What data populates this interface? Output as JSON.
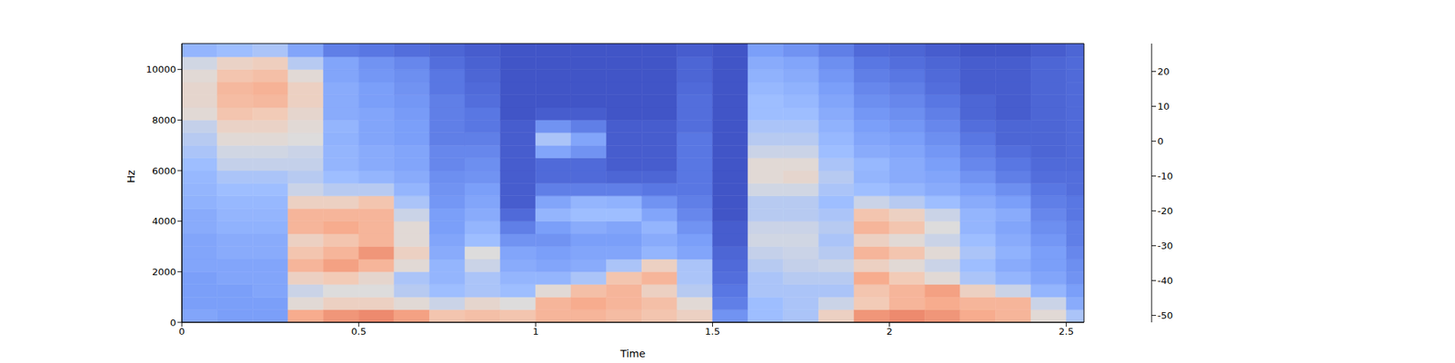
{
  "chart_data": {
    "type": "heatmap",
    "xlabel": "Time",
    "ylabel": "Hz",
    "xlim": [
      0,
      2.55
    ],
    "ylim": [
      0,
      11025
    ],
    "xticks": [
      0,
      0.5,
      1,
      1.5,
      2,
      2.5
    ],
    "yticks": [
      0,
      2000,
      4000,
      6000,
      8000,
      10000
    ],
    "x_edges": [
      0,
      0.1,
      0.2,
      0.3,
      0.4,
      0.5,
      0.6,
      0.7,
      0.8,
      0.9,
      1.0,
      1.1,
      1.2,
      1.3,
      1.4,
      1.5,
      1.6,
      1.7,
      1.8,
      1.9,
      2.0,
      2.1,
      2.2,
      2.3,
      2.4,
      2.5,
      2.55
    ],
    "y_edges": [
      0,
      500,
      1000,
      1500,
      2000,
      2500,
      3000,
      3500,
      4000,
      4500,
      5000,
      5500,
      6000,
      6500,
      7000,
      7500,
      8000,
      8500,
      9000,
      9500,
      10000,
      10500,
      11025
    ],
    "z": [
      [
        -30,
        -32,
        -32,
        -32,
        -30,
        -30,
        -30,
        -28,
        -28,
        -26,
        -25,
        -24,
        -22,
        -20,
        -18,
        -16,
        -10,
        -8,
        -8,
        -10,
        -14,
        -25
      ],
      [
        -32,
        -32,
        -32,
        -30,
        -30,
        -28,
        -28,
        -26,
        -25,
        -24,
        -22,
        -20,
        -16,
        -14,
        -10,
        -6,
        0,
        3,
        4,
        0,
        -6,
        -22
      ],
      [
        -32,
        -32,
        -30,
        -30,
        -30,
        -28,
        -28,
        -26,
        -25,
        -24,
        -22,
        -20,
        -16,
        -14,
        -10,
        -6,
        -2,
        4,
        6,
        2,
        -4,
        -20
      ],
      [
        8,
        -10,
        -15,
        -5,
        5,
        0,
        -5,
        5,
        5,
        -5,
        -15,
        -18,
        -16,
        -15,
        -12,
        -10,
        -8,
        -5,
        -5,
        -10,
        -18,
        -30
      ],
      [
        12,
        -5,
        -12,
        -2,
        10,
        5,
        0,
        8,
        5,
        -5,
        -18,
        -22,
        -25,
        -25,
        -26,
        -25,
        -28,
        -28,
        -28,
        -30,
        -30,
        -40
      ],
      [
        14,
        -5,
        -12,
        -8,
        5,
        12,
        5,
        5,
        5,
        0,
        -18,
        -25,
        -28,
        -28,
        -30,
        -30,
        -30,
        -32,
        -32,
        -34,
        -35,
        -42
      ],
      [
        10,
        -10,
        -18,
        -20,
        -10,
        -5,
        -10,
        -10,
        -15,
        -20,
        -25,
        -28,
        -30,
        -30,
        -32,
        -32,
        -33,
        -34,
        -35,
        -36,
        -38,
        -44
      ],
      [
        0,
        -15,
        -22,
        -25,
        -25,
        -28,
        -30,
        -32,
        -32,
        -34,
        -35,
        -36,
        -38,
        -38,
        -40,
        -40,
        -40,
        -40,
        -42,
        -42,
        -44,
        -46
      ],
      [
        2,
        -8,
        -20,
        -20,
        -15,
        -12,
        -22,
        -25,
        -28,
        -30,
        -32,
        -35,
        -36,
        -38,
        -40,
        -42,
        -42,
        -44,
        -45,
        -46,
        -47,
        -48
      ],
      [
        0,
        -12,
        -22,
        -25,
        -28,
        -30,
        -35,
        -40,
        -45,
        -48,
        -48,
        -48,
        -48,
        -48,
        -48,
        -48,
        -50,
        -50,
        -50,
        -50,
        -50,
        -50
      ],
      [
        5,
        5,
        -10,
        -25,
        -30,
        -32,
        -35,
        -32,
        -25,
        -30,
        -40,
        -45,
        -45,
        -30,
        -20,
        -35,
        -48,
        -50,
        -50,
        -50,
        -50,
        -50
      ],
      [
        5,
        8,
        2,
        -20,
        -28,
        -30,
        -32,
        -28,
        -22,
        -25,
        -40,
        -45,
        -45,
        -35,
        -30,
        -40,
        -48,
        -50,
        -50,
        -50,
        -50,
        -50
      ],
      [
        3,
        5,
        5,
        0,
        -20,
        -30,
        -32,
        -30,
        -22,
        -26,
        -40,
        -46,
        -48,
        -48,
        -48,
        -48,
        -50,
        -50,
        -50,
        -50,
        -50,
        -50
      ],
      [
        0,
        2,
        -5,
        5,
        -5,
        -25,
        -28,
        -25,
        -30,
        -35,
        -42,
        -46,
        -48,
        -48,
        -48,
        -48,
        -50,
        -50,
        -50,
        -50,
        -50,
        -50
      ],
      [
        -5,
        -10,
        -18,
        -20,
        -20,
        -30,
        -32,
        -35,
        -38,
        -40,
        -42,
        -42,
        -42,
        -42,
        -42,
        -44,
        -44,
        -44,
        -45,
        -46,
        -46,
        -48
      ],
      [
        -35,
        -40,
        -42,
        -44,
        -45,
        -46,
        -48,
        -48,
        -50,
        -50,
        -50,
        -50,
        -50,
        -50,
        -50,
        -50,
        -50,
        -50,
        -50,
        -50,
        -50,
        -50
      ],
      [
        -22,
        -22,
        -20,
        -20,
        -18,
        -16,
        -14,
        -15,
        -18,
        -18,
        -14,
        -10,
        -10,
        -15,
        -18,
        -20,
        -22,
        -22,
        -24,
        -26,
        -28,
        -32
      ],
      [
        -20,
        -20,
        -20,
        -18,
        -16,
        -15,
        -14,
        -15,
        -18,
        -18,
        -14,
        -8,
        -10,
        -15,
        -18,
        -20,
        -22,
        -24,
        -26,
        -28,
        -30,
        -35
      ],
      [
        -5,
        -15,
        -20,
        -18,
        -15,
        -18,
        -20,
        -18,
        -20,
        -22,
        -20,
        -18,
        -20,
        -22,
        -24,
        -26,
        -28,
        -30,
        -32,
        -34,
        -36,
        -40
      ],
      [
        12,
        -2,
        0,
        8,
        -5,
        5,
        -5,
        5,
        0,
        -15,
        -22,
        -25,
        -24,
        -28,
        -30,
        -32,
        -34,
        -36,
        -38,
        -40,
        -42,
        -45
      ],
      [
        14,
        5,
        5,
        -2,
        -10,
        0,
        -10,
        0,
        -5,
        -18,
        -25,
        -28,
        -28,
        -30,
        -32,
        -34,
        -36,
        -38,
        -40,
        -42,
        -44,
        -46
      ],
      [
        12,
        8,
        10,
        -10,
        -15,
        -10,
        -15,
        -12,
        -15,
        -22,
        -28,
        -30,
        -32,
        -34,
        -36,
        -38,
        -40,
        -42,
        -44,
        -45,
        -46,
        -48
      ],
      [
        8,
        5,
        -5,
        -20,
        -22,
        -20,
        -22,
        -25,
        -25,
        -28,
        -32,
        -35,
        -38,
        -40,
        -42,
        -44,
        -46,
        -46,
        -48,
        -48,
        -48,
        -50
      ],
      [
        5,
        5,
        -15,
        -25,
        -28,
        -26,
        -28,
        -30,
        -28,
        -32,
        -36,
        -40,
        -42,
        -44,
        -46,
        -46,
        -48,
        -48,
        -48,
        -48,
        -48,
        -50
      ],
      [
        -10,
        -15,
        -25,
        -30,
        -32,
        -32,
        -34,
        -36,
        -38,
        -40,
        -42,
        -44,
        -45,
        -46,
        -46,
        -46,
        -46,
        -46,
        -46,
        -46,
        -46,
        -48
      ],
      [
        -20,
        -28,
        -32,
        -35,
        -36,
        -38,
        -40,
        -40,
        -42,
        -42,
        -44,
        -44,
        -45,
        -45,
        -45,
        -45,
        -45,
        -45,
        -45,
        -45,
        -45,
        -46
      ]
    ],
    "colorbar": {
      "range": [
        -52,
        28
      ],
      "ticks": [
        -50,
        -40,
        -30,
        -20,
        -10,
        0,
        10,
        20
      ]
    }
  }
}
